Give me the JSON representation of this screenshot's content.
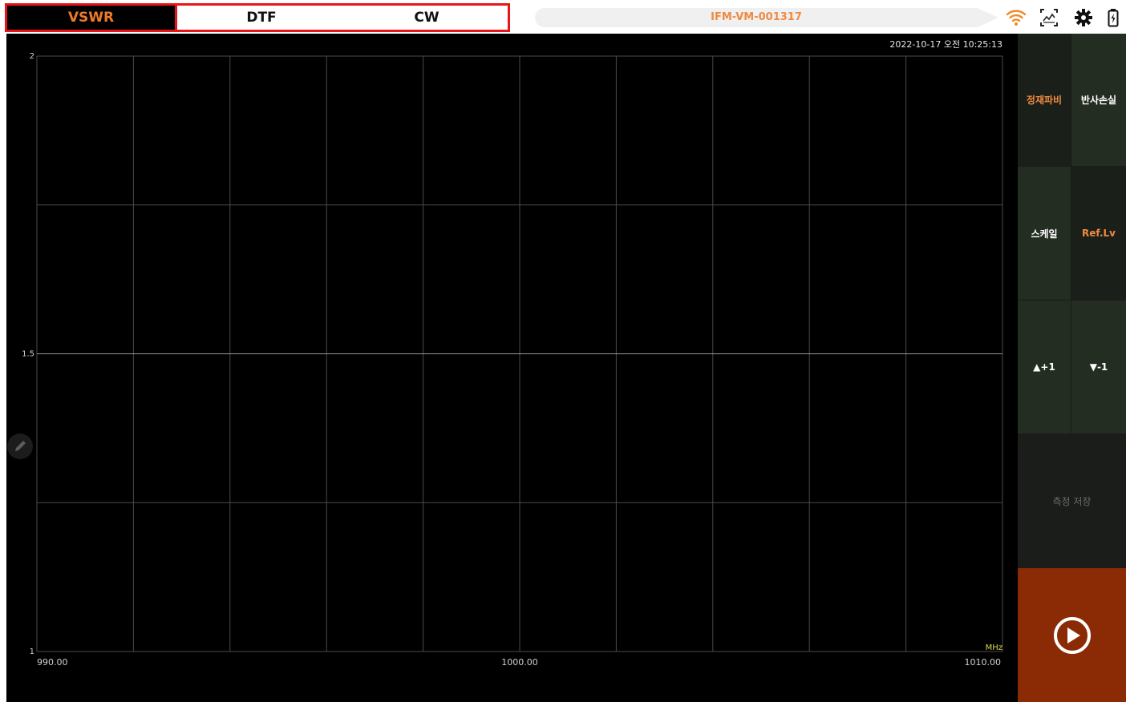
{
  "tabs": [
    {
      "label": "VSWR",
      "active": true
    },
    {
      "label": "DTF",
      "active": false
    },
    {
      "label": "CW",
      "active": false
    }
  ],
  "device_id": "IFM-VM-001317",
  "status_icons": [
    "wifi-icon",
    "graph-icon",
    "gear-icon",
    "battery-icon"
  ],
  "timestamp": "2022-10-17 오전 10:25:13",
  "side_buttons": {
    "vswr": "정재파비",
    "return_loss": "반사손실",
    "scale": "스케일",
    "ref_level": "Ref.Lv",
    "up": "▲+1",
    "down": "▼-1",
    "save": "측정 저장"
  },
  "colors": {
    "accent": "#ef7a28",
    "tab_border": "#e8141a",
    "run_button": "#8b2b06",
    "panel": "#191c18"
  },
  "chart_data": {
    "type": "line",
    "title": "",
    "xlabel": "MHz",
    "ylabel": "",
    "xlim": [
      990,
      1010
    ],
    "ylim": [
      1,
      2
    ],
    "x_ticks": [
      "990.00",
      "1000.00",
      "1010.00"
    ],
    "y_ticks": [
      "1",
      "1.5",
      "2"
    ],
    "vertical_gridlines": 10,
    "horizontal_gridlines": 4,
    "grid": true,
    "series": []
  }
}
